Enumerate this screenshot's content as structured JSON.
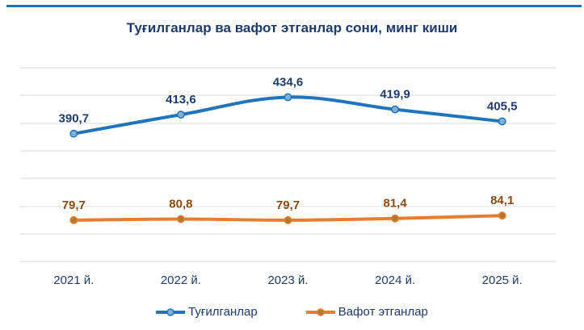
{
  "colors": {
    "births": "#1f74bd",
    "deaths": "#e87d2e",
    "grid": "#d9d9d9",
    "text": "#1f3b6b"
  },
  "chart_data": {
    "type": "line",
    "title": "Туғилганлар ва вафот этганлар сони, минг киши",
    "categories": [
      "2021 й.",
      "2022 й.",
      "2023 й.",
      "2024 й.",
      "2025 й."
    ],
    "series": [
      {
        "name": "Туғилганлар",
        "values": [
          390.7,
          413.6,
          434.6,
          419.9,
          405.5
        ],
        "labels": [
          "390,7",
          "413,6",
          "434,6",
          "419,9",
          "405,5"
        ]
      },
      {
        "name": "Вафот этганлар",
        "values": [
          79.7,
          80.8,
          79.7,
          81.4,
          84.1
        ],
        "labels": [
          "79,7",
          "80,8",
          "79,7",
          "81,4",
          "84,1"
        ]
      }
    ],
    "grid": true,
    "legend": "bottom"
  }
}
